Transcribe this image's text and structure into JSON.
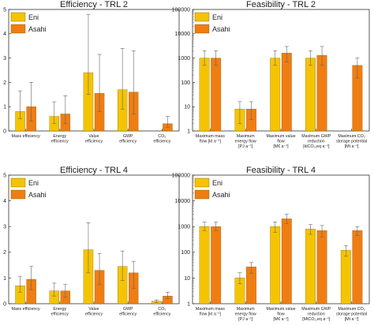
{
  "colors": {
    "Eni": "#f5c400",
    "Asahi": "#f07d12"
  },
  "chart_data": [
    {
      "type": "bar",
      "title": "Efficiency - TRL 2",
      "yscale": "linear",
      "ylim": [
        0,
        5
      ],
      "yticks": [
        "0",
        "1",
        "2",
        "3",
        "4",
        "5"
      ],
      "categories": [
        [
          "Mass efficiency"
        ],
        [
          "Energy",
          "efficiency"
        ],
        [
          "Value",
          "efficiency"
        ],
        [
          "GWP",
          "efficiency"
        ],
        [
          "CO₂",
          "efficiency"
        ]
      ],
      "legend": {
        "position": "top-left",
        "entries": [
          "Eni",
          "Asahi"
        ]
      },
      "series": [
        {
          "name": "Eni",
          "values": [
            0.8,
            0.6,
            2.4,
            1.7,
            null
          ],
          "err_low": [
            0.5,
            0.3,
            1.5,
            0.9,
            null
          ],
          "err_high": [
            1.65,
            1.2,
            4.8,
            3.4,
            null
          ]
        },
        {
          "name": "Asahi",
          "values": [
            1.0,
            0.7,
            1.55,
            1.6,
            0.3
          ],
          "err_low": [
            0.4,
            0.3,
            0.8,
            0.7,
            0.15
          ],
          "err_high": [
            2.0,
            1.45,
            3.15,
            3.3,
            0.6
          ]
        }
      ]
    },
    {
      "type": "bar",
      "title": "Feasibility - TRL 2",
      "yscale": "log",
      "ylim": [
        1,
        100000
      ],
      "yticks": [
        "1",
        "10",
        "100",
        "1000",
        "10000",
        "100000"
      ],
      "categories": [
        [
          "Maximum mass",
          "flow [kt a⁻¹]"
        ],
        [
          "Maximum",
          "energy flow",
          "[PJ a⁻¹]"
        ],
        [
          "Maximum value",
          "flow",
          "[M€ a⁻¹]"
        ],
        [
          "Maximum GWP",
          "reduction",
          "[ktCO₂,eq a⁻¹]"
        ],
        [
          "Maximum CO₂",
          "storage potential",
          "[Mt a⁻¹]"
        ]
      ],
      "legend": {
        "position": "top-left",
        "entries": [
          "Eni",
          "Asahi"
        ]
      },
      "series": [
        {
          "name": "Eni",
          "values": [
            1000,
            8,
            1000,
            1000,
            null
          ],
          "err_low": [
            500,
            2,
            500,
            500,
            null
          ],
          "err_high": [
            2000,
            16,
            2000,
            2000,
            null
          ]
        },
        {
          "name": "Asahi",
          "values": [
            1000,
            8,
            1600,
            1300,
            500
          ],
          "err_low": [
            500,
            3,
            700,
            500,
            150
          ],
          "err_high": [
            2000,
            16,
            3000,
            3000,
            1000
          ]
        }
      ]
    },
    {
      "type": "bar",
      "title": "Efficiency - TRL 4",
      "yscale": "linear",
      "ylim": [
        0,
        5
      ],
      "yticks": [
        "0",
        "1",
        "2",
        "3",
        "4",
        "5"
      ],
      "categories": [
        [
          "Mass efficiency"
        ],
        [
          "Energy",
          "efficiency"
        ],
        [
          "Value",
          "efficiency"
        ],
        [
          "GWP",
          "efficiency"
        ],
        [
          "CO₂",
          "efficiency"
        ]
      ],
      "legend": {
        "position": "top-left",
        "entries": [
          "Eni",
          "Asahi"
        ]
      },
      "series": [
        {
          "name": "Eni",
          "values": [
            0.7,
            0.5,
            2.1,
            1.45,
            0.1
          ],
          "err_low": [
            0.45,
            0.3,
            1.2,
            0.9,
            0.05
          ],
          "err_high": [
            1.05,
            0.8,
            3.15,
            2.05,
            0.15
          ]
        },
        {
          "name": "Asahi",
          "values": [
            0.95,
            0.5,
            1.3,
            1.2,
            0.3
          ],
          "err_low": [
            0.55,
            0.25,
            0.75,
            0.6,
            0.2
          ],
          "err_high": [
            1.45,
            0.75,
            1.95,
            1.65,
            0.45
          ]
        }
      ]
    },
    {
      "type": "bar",
      "title": "Feasibility - TRL 4",
      "yscale": "log",
      "ylim": [
        1,
        100000
      ],
      "yticks": [
        "1",
        "10",
        "100",
        "1000",
        "10000",
        "100000"
      ],
      "categories": [
        [
          "Maximum mass",
          "flow [kt a⁻¹]"
        ],
        [
          "Maximum",
          "energy flow",
          "[PJ a⁻¹]"
        ],
        [
          "Maximum value",
          "flow",
          "[M€ a⁻¹]"
        ],
        [
          "Maximum GWP",
          "reduction",
          "[MtCO₂,eq a⁻¹]"
        ],
        [
          "Maximum CO₂",
          "storage potential",
          "[Mt a⁻¹]"
        ]
      ],
      "legend": {
        "position": "top-left",
        "entries": [
          "Eni",
          "Asahi"
        ]
      },
      "series": [
        {
          "name": "Eni",
          "values": [
            1000,
            10,
            1000,
            800,
            120
          ],
          "err_low": [
            700,
            6,
            600,
            500,
            70
          ],
          "err_high": [
            1500,
            16,
            1500,
            1200,
            180
          ]
        },
        {
          "name": "Asahi",
          "values": [
            1000,
            27,
            2000,
            700,
            700
          ],
          "err_low": [
            700,
            15,
            1300,
            400,
            450
          ],
          "err_high": [
            1500,
            40,
            3000,
            1100,
            1000
          ]
        }
      ]
    }
  ]
}
